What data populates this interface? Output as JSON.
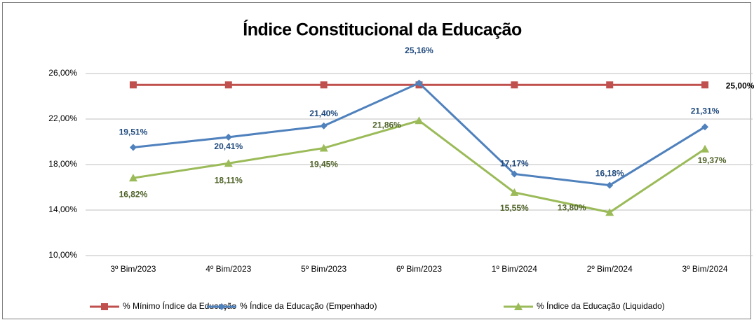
{
  "chart_data": {
    "type": "line",
    "title": "Índice Constitucional da Educação",
    "categories": [
      "3º Bim/2023",
      "4º Bim/2023",
      "5º Bim/2023",
      "6º Bim/2023",
      "1º Bim/2024",
      "2º Bim/2024",
      "3º Bim/2024"
    ],
    "series": [
      {
        "name": "% Mínimo Índice da Educação",
        "color": "#c0504d",
        "marker": "square",
        "label_color": "#000000",
        "values": [
          25,
          25,
          25,
          25,
          25,
          25,
          25
        ],
        "value_labels": [
          null,
          null,
          null,
          null,
          null,
          null,
          "25,00%"
        ]
      },
      {
        "name": "% Índice da Educação (Empenhado)",
        "color": "#4f81bd",
        "marker": "diamond",
        "label_color": "#1f497d",
        "values": [
          19.51,
          20.41,
          21.4,
          25.16,
          17.17,
          16.18,
          21.31
        ],
        "value_labels": [
          "19,51%",
          "20,41%",
          "21,40%",
          "25,16%",
          "17,17%",
          "16,18%",
          "21,31%"
        ]
      },
      {
        "name": "% Índice da Educação (Liquidado)",
        "color": "#9bbb59",
        "marker": "triangle",
        "label_color": "#4f6228",
        "values": [
          16.82,
          18.11,
          19.45,
          21.86,
          15.55,
          13.8,
          19.37
        ],
        "value_labels": [
          "16,82%",
          "18,11%",
          "19,45%",
          "21,86%",
          "15,55%",
          "13,80%",
          "19,37%"
        ]
      }
    ],
    "ylim": [
      10,
      26
    ],
    "yticks": [
      {
        "value": 10,
        "label": "10,00%"
      },
      {
        "value": 14,
        "label": "14,00%"
      },
      {
        "value": 18,
        "label": "18,00%"
      },
      {
        "value": 22,
        "label": "22,00%"
      },
      {
        "value": 26,
        "label": "26,00%"
      }
    ],
    "grid": true,
    "legend": "bottom"
  }
}
